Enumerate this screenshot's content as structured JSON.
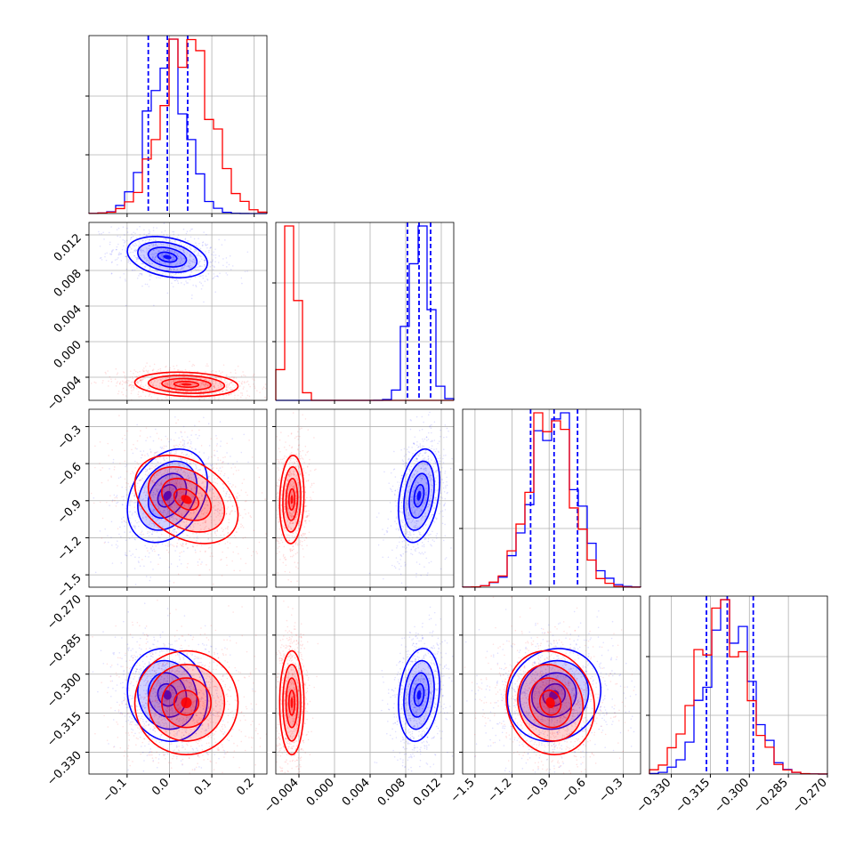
{
  "chart_data": {
    "type": "corner",
    "grid": true,
    "colors": {
      "blue": "#0000ff",
      "red": "#ff0000"
    },
    "parameters": [
      {
        "range": [
          -0.19,
          0.23
        ],
        "ticks": [
          "−0.1",
          "0.0",
          "0.1",
          "0.2"
        ],
        "tick_values": [
          -0.1,
          0.0,
          0.1,
          0.2
        ]
      },
      {
        "range": [
          -0.0066,
          0.0134
        ],
        "ticks": [
          "−0.004",
          "0.000",
          "0.004",
          "0.008",
          "0.012"
        ],
        "tick_values": [
          -0.004,
          0.0,
          0.004,
          0.008,
          0.012
        ]
      },
      {
        "range": [
          -1.6,
          -0.16
        ],
        "ticks": [
          "−1.5",
          "−1.2",
          "−0.9",
          "−0.6",
          "−0.3"
        ],
        "tick_values": [
          -1.5,
          -1.2,
          -0.9,
          -0.6,
          -0.3
        ]
      },
      {
        "range": [
          -0.3384,
          -0.27
        ],
        "ticks": [
          "−0.330",
          "−0.315",
          "−0.300",
          "−0.285",
          "−0.270"
        ],
        "tick_values": [
          -0.33,
          -0.315,
          -0.3,
          -0.285,
          -0.27
        ]
      }
    ],
    "series": [
      {
        "color": "blue",
        "means": [
          -0.005,
          0.0095,
          -0.86,
          -0.308
        ],
        "sds": [
          0.045,
          0.0011,
          0.18,
          0.0085
        ],
        "correlations": {
          "0-1": -0.3,
          "0-2": 0.3,
          "0-3": -0.1,
          "1-2": 0.3,
          "1-3": 0.2,
          "2-3": 0.1
        },
        "quantiles": [
          [
            -0.05,
            -0.005,
            0.043
          ],
          [
            0.0082,
            0.0095,
            0.0108
          ],
          [
            -1.05,
            -0.86,
            -0.67
          ],
          [
            -0.3165,
            -0.3085,
            -0.2985
          ]
        ]
      },
      {
        "color": "red",
        "means": [
          0.04,
          -0.0048,
          -0.89,
          -0.311
        ],
        "sds": [
          0.058,
          0.00065,
          0.17,
          0.0095
        ],
        "correlations": {
          "0-1": -0.15,
          "0-2": -0.35,
          "0-3": 0.0,
          "1-2": 0.1,
          "1-3": 0.0,
          "2-3": -0.1
        }
      }
    ]
  }
}
